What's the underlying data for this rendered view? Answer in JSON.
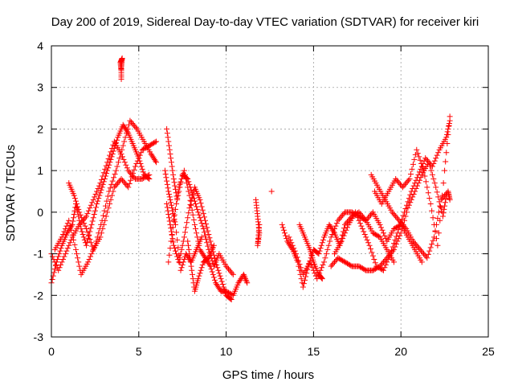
{
  "chart_data": {
    "type": "scatter",
    "title": "Day 200 of 2019, Sidereal Day-to-day VTEC variation (SDTVAR) for receiver kiri",
    "xlabel": "GPS time / hours",
    "ylabel": "SDTVAR / TECUs",
    "xlim": [
      0,
      25
    ],
    "ylim": [
      -3,
      4
    ],
    "xticks": [
      0,
      5,
      10,
      15,
      20,
      25
    ],
    "yticks": [
      -3,
      -2,
      -1,
      0,
      1,
      2,
      3,
      4
    ],
    "grid": true,
    "marker": "+",
    "color": "#ff0000",
    "series": [
      {
        "name": "SDTVAR",
        "segments": [
          [
            [
              0.0,
              -1.7
            ],
            [
              0.3,
              -1.2
            ],
            [
              0.6,
              -0.8
            ],
            [
              0.9,
              -0.5
            ],
            [
              1.2,
              -0.3
            ],
            [
              1.4,
              0.2
            ],
            [
              1.7,
              -0.4
            ],
            [
              2.0,
              -0.8
            ],
            [
              2.3,
              -0.3
            ],
            [
              2.6,
              0.2
            ],
            [
              2.9,
              0.6
            ],
            [
              3.2,
              1.0
            ],
            [
              3.5,
              1.4
            ],
            [
              3.8,
              1.8
            ],
            [
              4.1,
              2.1
            ],
            [
              4.4,
              1.9
            ],
            [
              4.7,
              1.6
            ],
            [
              5.0,
              1.3
            ],
            [
              5.3,
              0.9
            ],
            [
              5.6,
              0.8
            ]
          ],
          [
            [
              0.0,
              -1.0
            ],
            [
              0.4,
              -1.4
            ],
            [
              0.8,
              -1.0
            ],
            [
              1.2,
              -0.6
            ],
            [
              1.6,
              -0.3
            ],
            [
              2.0,
              -0.1
            ],
            [
              2.4,
              0.3
            ],
            [
              2.8,
              0.7
            ],
            [
              3.2,
              1.2
            ],
            [
              3.6,
              1.7
            ],
            [
              4.0,
              1.4
            ],
            [
              4.4,
              1.0
            ],
            [
              4.8,
              0.8
            ],
            [
              5.2,
              0.8
            ],
            [
              5.6,
              0.9
            ]
          ],
          [
            [
              0.2,
              -0.9
            ],
            [
              0.6,
              -0.6
            ],
            [
              1.0,
              -0.2
            ],
            [
              1.4,
              -0.9
            ],
            [
              1.7,
              -1.5
            ],
            [
              2.1,
              -1.2
            ],
            [
              2.5,
              -0.8
            ],
            [
              2.9,
              -0.2
            ],
            [
              3.3,
              0.5
            ],
            [
              3.7,
              1.0
            ],
            [
              4.1,
              1.6
            ],
            [
              4.5,
              2.2
            ],
            [
              4.9,
              2.0
            ],
            [
              5.3,
              1.7
            ],
            [
              5.7,
              1.4
            ],
            [
              6.0,
              1.2
            ]
          ],
          [
            [
              1.0,
              0.7
            ],
            [
              1.3,
              0.4
            ],
            [
              1.6,
              0.0
            ],
            [
              2.0,
              -0.4
            ],
            [
              2.4,
              -0.9
            ],
            [
              2.8,
              -0.6
            ],
            [
              3.2,
              0.0
            ],
            [
              3.6,
              0.6
            ],
            [
              4.0,
              0.8
            ],
            [
              4.4,
              0.6
            ],
            [
              4.8,
              1.1
            ],
            [
              5.2,
              1.5
            ],
            [
              5.6,
              1.6
            ],
            [
              6.0,
              1.7
            ]
          ],
          [
            [
              4.0,
              3.2
            ],
            [
              4.0,
              3.5
            ],
            [
              4.05,
              3.7
            ],
            [
              3.95,
              3.6
            ],
            [
              4.0,
              3.4
            ]
          ],
          [
            [
              6.6,
              2.0
            ],
            [
              6.8,
              1.4
            ],
            [
              7.0,
              0.8
            ],
            [
              7.2,
              0.3
            ],
            [
              7.5,
              0.9
            ],
            [
              7.8,
              0.8
            ],
            [
              8.1,
              0.4
            ],
            [
              8.4,
              0.0
            ],
            [
              8.7,
              -0.4
            ],
            [
              9.0,
              -0.9
            ],
            [
              9.3,
              -1.3
            ],
            [
              9.6,
              -1.0
            ],
            [
              10.0,
              -1.3
            ],
            [
              10.4,
              -1.5
            ]
          ],
          [
            [
              6.6,
              0.2
            ],
            [
              6.8,
              -0.3
            ],
            [
              7.0,
              -0.8
            ],
            [
              7.3,
              -1.2
            ],
            [
              7.6,
              -0.6
            ],
            [
              7.9,
              0.1
            ],
            [
              8.2,
              0.6
            ],
            [
              8.5,
              0.3
            ],
            [
              8.8,
              -0.2
            ],
            [
              9.1,
              -0.7
            ],
            [
              9.4,
              -1.2
            ],
            [
              9.7,
              -1.6
            ],
            [
              10.0,
              -2.0
            ],
            [
              10.3,
              -2.1
            ]
          ],
          [
            [
              6.7,
              -1.2
            ],
            [
              7.0,
              -0.2
            ],
            [
              7.3,
              0.6
            ],
            [
              7.6,
              1.0
            ],
            [
              7.9,
              0.4
            ],
            [
              8.2,
              -0.3
            ],
            [
              8.5,
              -0.9
            ],
            [
              8.8,
              -1.1
            ],
            [
              9.1,
              -1.3
            ],
            [
              9.4,
              -1.7
            ],
            [
              9.7,
              -1.9
            ],
            [
              10.0,
              -1.9
            ],
            [
              10.4,
              -2.0
            ],
            [
              10.7,
              -1.7
            ],
            [
              11.0,
              -1.5
            ],
            [
              11.2,
              -1.7
            ]
          ],
          [
            [
              6.5,
              1.0
            ],
            [
              6.7,
              0.5
            ],
            [
              6.9,
              0.1
            ],
            [
              7.1,
              -0.3
            ],
            [
              7.4,
              -1.4
            ],
            [
              7.7,
              -1.0
            ],
            [
              8.0,
              -1.2
            ],
            [
              8.3,
              -0.9
            ],
            [
              8.6,
              -0.6
            ]
          ],
          [
            [
              7.8,
              -0.7
            ],
            [
              8.0,
              -1.3
            ],
            [
              8.2,
              -1.9
            ],
            [
              8.4,
              -1.6
            ],
            [
              8.7,
              -1.2
            ],
            [
              9.0,
              -1.1
            ],
            [
              9.3,
              -0.8
            ]
          ],
          [
            [
              11.7,
              0.3
            ],
            [
              11.8,
              -0.1
            ],
            [
              11.9,
              -0.5
            ],
            [
              11.8,
              -0.8
            ],
            [
              11.9,
              -0.3
            ]
          ],
          [
            [
              12.6,
              0.5
            ]
          ],
          [
            [
              13.2,
              -0.3
            ],
            [
              13.5,
              -0.7
            ],
            [
              13.8,
              -0.9
            ],
            [
              14.1,
              -1.2
            ],
            [
              14.4,
              -1.8
            ],
            [
              14.7,
              -1.3
            ],
            [
              15.0,
              -0.9
            ],
            [
              15.3,
              -1.0
            ],
            [
              15.6,
              -0.6
            ],
            [
              15.9,
              -0.3
            ],
            [
              16.2,
              -0.5
            ],
            [
              16.5,
              -0.8
            ],
            [
              16.8,
              -0.3
            ],
            [
              17.2,
              -0.1
            ],
            [
              17.6,
              0.0
            ],
            [
              18.0,
              -0.2
            ],
            [
              18.4,
              0.0
            ],
            [
              18.8,
              -0.3
            ],
            [
              19.2,
              -0.7
            ],
            [
              19.6,
              -0.4
            ],
            [
              20.0,
              -0.3
            ],
            [
              20.4,
              -0.6
            ],
            [
              20.8,
              -0.9
            ],
            [
              21.2,
              -1.2
            ]
          ],
          [
            [
              13.6,
              -0.6
            ],
            [
              14.0,
              -1.0
            ],
            [
              14.4,
              -1.5
            ],
            [
              14.8,
              -1.2
            ],
            [
              15.2,
              -1.6
            ],
            [
              15.6,
              -1.2
            ],
            [
              16.0,
              -0.6
            ],
            [
              16.4,
              -0.2
            ],
            [
              16.8,
              0.0
            ],
            [
              17.2,
              0.0
            ],
            [
              17.6,
              -0.1
            ],
            [
              18.0,
              -0.2
            ],
            [
              18.4,
              -0.5
            ],
            [
              18.8,
              -0.6
            ],
            [
              19.2,
              -0.9
            ],
            [
              19.6,
              -1.2
            ]
          ],
          [
            [
              14.2,
              -0.3
            ],
            [
              14.5,
              -0.6
            ],
            [
              14.8,
              -0.9
            ],
            [
              15.0,
              -1.2
            ],
            [
              15.3,
              -1.5
            ],
            [
              15.5,
              -1.6
            ]
          ],
          [
            [
              16.0,
              -1.3
            ],
            [
              16.4,
              -1.1
            ],
            [
              16.8,
              -1.2
            ],
            [
              17.2,
              -1.3
            ],
            [
              17.6,
              -1.3
            ],
            [
              18.0,
              -1.4
            ],
            [
              18.4,
              -1.4
            ],
            [
              18.8,
              -1.3
            ],
            [
              19.2,
              -1.1
            ],
            [
              19.6,
              -0.9
            ],
            [
              20.0,
              -0.5
            ],
            [
              20.4,
              0.1
            ],
            [
              20.8,
              0.5
            ],
            [
              21.2,
              0.9
            ],
            [
              21.6,
              1.2
            ],
            [
              22.0,
              0.6
            ],
            [
              22.4,
              -0.1
            ],
            [
              22.6,
              0.4
            ]
          ],
          [
            [
              16.2,
              -1.0
            ],
            [
              16.6,
              -0.7
            ],
            [
              17.0,
              -0.3
            ],
            [
              17.4,
              0.0
            ],
            [
              17.8,
              -0.4
            ],
            [
              18.2,
              -0.8
            ],
            [
              18.6,
              -1.3
            ],
            [
              19.0,
              -1.4
            ],
            [
              19.4,
              -1.0
            ],
            [
              19.8,
              -0.5
            ],
            [
              20.2,
              0.0
            ],
            [
              20.6,
              0.5
            ],
            [
              21.0,
              0.9
            ],
            [
              21.4,
              1.3
            ],
            [
              21.8,
              1.1
            ],
            [
              22.2,
              1.5
            ],
            [
              22.6,
              1.8
            ],
            [
              22.8,
              2.2
            ]
          ],
          [
            [
              18.3,
              0.9
            ],
            [
              18.7,
              0.6
            ],
            [
              19.1,
              0.3
            ],
            [
              19.5,
              0.0
            ],
            [
              19.9,
              -0.2
            ],
            [
              20.3,
              -0.4
            ],
            [
              20.7,
              -0.7
            ],
            [
              21.1,
              -0.9
            ],
            [
              21.5,
              -1.1
            ],
            [
              21.9,
              -0.6
            ],
            [
              22.3,
              0.3
            ],
            [
              22.7,
              0.5
            ],
            [
              22.8,
              0.3
            ]
          ],
          [
            [
              18.5,
              0.5
            ],
            [
              18.9,
              0.2
            ],
            [
              19.3,
              0.5
            ],
            [
              19.7,
              0.8
            ],
            [
              20.1,
              0.6
            ],
            [
              20.5,
              0.8
            ],
            [
              20.9,
              1.5
            ],
            [
              21.3,
              1.0
            ],
            [
              21.7,
              0.2
            ],
            [
              22.1,
              -0.8
            ],
            [
              22.5,
              1.0
            ],
            [
              22.8,
              2.3
            ]
          ]
        ]
      }
    ]
  }
}
